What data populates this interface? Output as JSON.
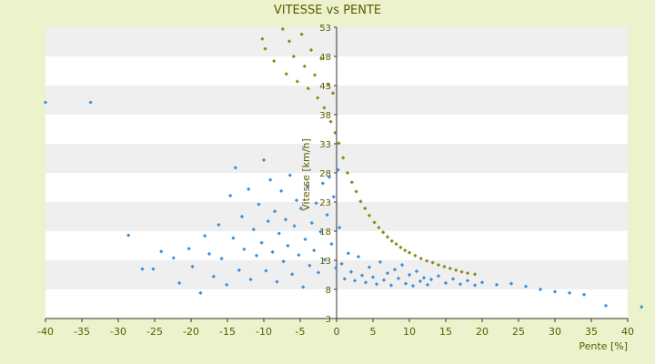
{
  "chart_data": {
    "type": "scatter",
    "title": "VITESSE vs PENTE",
    "xlabel": "Pente [%]",
    "ylabel": "Vitesse [km/h]",
    "xlim": [
      -40,
      40
    ],
    "ylim": [
      3,
      53
    ],
    "x_ticks": [
      -40,
      -35,
      -30,
      -25,
      -20,
      -15,
      -10,
      -5,
      0,
      5,
      10,
      15,
      20,
      25,
      30,
      35,
      40
    ],
    "y_ticks": [
      3,
      8,
      13,
      18,
      23,
      28,
      33,
      38,
      43,
      48,
      53
    ],
    "grid": "horizontal bands",
    "legend": "none",
    "colors": {
      "background": "#ecf2cc",
      "band_light": "#ffffff",
      "band_dark": "#efefef",
      "series_blue": "#3d8ed6",
      "series_olive": "#8a8a1a",
      "text": "#5a5a00",
      "axis": "#333333"
    },
    "series": [
      {
        "points": [
          [
            -40,
            40.1
          ],
          [
            -33.8,
            40.1
          ],
          [
            -28.6,
            17.3
          ],
          [
            -26.7,
            11.5
          ],
          [
            -25.2,
            11.5
          ],
          [
            -24.1,
            14.5
          ],
          [
            -22.4,
            13.4
          ],
          [
            -21.6,
            9.1
          ],
          [
            -20.3,
            15.0
          ],
          [
            -19.8,
            11.9
          ],
          [
            -18.7,
            7.4
          ],
          [
            -18.1,
            17.2
          ],
          [
            -17.5,
            14.1
          ],
          [
            -16.9,
            10.2
          ],
          [
            -16.2,
            19.1
          ],
          [
            -15.8,
            13.3
          ],
          [
            -15.1,
            8.8
          ],
          [
            -14.6,
            24.1
          ],
          [
            -14.2,
            16.8
          ],
          [
            -13.9,
            28.9
          ],
          [
            -13.4,
            11.3
          ],
          [
            -13.0,
            20.5
          ],
          [
            -12.7,
            14.9
          ],
          [
            -12.1,
            25.2
          ],
          [
            -11.8,
            9.7
          ],
          [
            -11.4,
            18.3
          ],
          [
            -11.0,
            13.8
          ],
          [
            -10.7,
            22.6
          ],
          [
            -10.3,
            16.0
          ],
          [
            -10.0,
            30.2
          ],
          [
            -9.7,
            11.2
          ],
          [
            -9.4,
            19.7
          ],
          [
            -9.1,
            26.8
          ],
          [
            -8.8,
            14.4
          ],
          [
            -8.5,
            21.4
          ],
          [
            -8.2,
            9.3
          ],
          [
            -7.9,
            17.6
          ],
          [
            -7.6,
            24.9
          ],
          [
            -7.3,
            12.8
          ],
          [
            -7.0,
            20.0
          ],
          [
            -6.7,
            15.5
          ],
          [
            -6.4,
            27.6
          ],
          [
            -6.1,
            10.6
          ],
          [
            -5.8,
            18.9
          ],
          [
            -5.5,
            23.3
          ],
          [
            -5.2,
            13.9
          ],
          [
            -4.9,
            21.9
          ],
          [
            -4.6,
            8.4
          ],
          [
            -4.3,
            16.6
          ],
          [
            -4.0,
            25.7
          ],
          [
            -3.7,
            12.1
          ],
          [
            -3.4,
            19.4
          ],
          [
            -3.1,
            14.7
          ],
          [
            -2.8,
            22.8
          ],
          [
            -2.5,
            10.9
          ],
          [
            -2.2,
            17.9
          ],
          [
            -1.9,
            26.2
          ],
          [
            -1.6,
            13.1
          ],
          [
            -1.3,
            20.8
          ],
          [
            -1.0,
            27.3
          ],
          [
            -0.7,
            15.8
          ],
          [
            -0.4,
            23.9
          ],
          [
            -0.1,
            11.7
          ],
          [
            0.2,
            28.5
          ],
          [
            0.4,
            18.6
          ],
          [
            0.7,
            12.4
          ],
          [
            1.1,
            9.8
          ],
          [
            1.6,
            14.2
          ],
          [
            2.0,
            11.0
          ],
          [
            2.5,
            9.5
          ],
          [
            3.0,
            13.6
          ],
          [
            3.5,
            10.4
          ],
          [
            4.0,
            9.2
          ],
          [
            4.5,
            11.8
          ],
          [
            5.0,
            10.1
          ],
          [
            5.5,
            8.9
          ],
          [
            6.0,
            12.7
          ],
          [
            6.5,
            9.6
          ],
          [
            7.0,
            10.8
          ],
          [
            7.5,
            8.7
          ],
          [
            8.0,
            11.4
          ],
          [
            8.5,
            9.9
          ],
          [
            9.0,
            12.2
          ],
          [
            9.5,
            9.0
          ],
          [
            10.0,
            10.5
          ],
          [
            10.5,
            8.6
          ],
          [
            11.0,
            11.1
          ],
          [
            11.5,
            9.4
          ],
          [
            12.0,
            10.0
          ],
          [
            12.5,
            8.8
          ],
          [
            13.0,
            9.7
          ],
          [
            14.0,
            10.3
          ],
          [
            15.0,
            9.1
          ],
          [
            16.0,
            9.8
          ],
          [
            17.0,
            8.9
          ],
          [
            18.0,
            9.5
          ],
          [
            19.0,
            8.7
          ],
          [
            20.0,
            9.2
          ],
          [
            22.0,
            8.8
          ],
          [
            24.0,
            9.0
          ],
          [
            26.0,
            8.5
          ],
          [
            28.0,
            8.0
          ],
          [
            30.0,
            7.6
          ],
          [
            32.0,
            7.4
          ],
          [
            34.0,
            7.1
          ],
          [
            37.0,
            5.2
          ],
          [
            41.9,
            5.0
          ]
        ]
      },
      {
        "points": [
          [
            -10.2,
            51.0
          ],
          [
            -9.8,
            49.3
          ],
          [
            -8.6,
            47.2
          ],
          [
            -7.4,
            52.7
          ],
          [
            -6.9,
            45.0
          ],
          [
            -6.5,
            50.6
          ],
          [
            -5.9,
            48.0
          ],
          [
            -5.4,
            43.7
          ],
          [
            -4.8,
            51.8
          ],
          [
            -4.4,
            46.3
          ],
          [
            -3.9,
            42.5
          ],
          [
            -3.5,
            49.1
          ],
          [
            -3.0,
            44.8
          ],
          [
            -2.6,
            40.9
          ],
          [
            -2.1,
            47.6
          ],
          [
            -1.7,
            39.2
          ],
          [
            -1.2,
            43.1
          ],
          [
            -0.8,
            36.8
          ],
          [
            -0.5,
            41.7
          ],
          [
            -0.2,
            34.9
          ],
          [
            0.3,
            33.1
          ],
          [
            0.9,
            30.6
          ],
          [
            1.5,
            28.0
          ],
          [
            2.1,
            26.4
          ],
          [
            2.7,
            24.8
          ],
          [
            3.3,
            23.1
          ],
          [
            3.9,
            21.9
          ],
          [
            4.5,
            20.7
          ],
          [
            5.2,
            19.5
          ],
          [
            5.8,
            18.6
          ],
          [
            6.4,
            17.8
          ],
          [
            7.0,
            17.0
          ],
          [
            7.6,
            16.3
          ],
          [
            8.2,
            15.8
          ],
          [
            8.8,
            15.2
          ],
          [
            9.4,
            14.7
          ],
          [
            10.0,
            14.3
          ],
          [
            10.8,
            13.8
          ],
          [
            11.6,
            13.3
          ],
          [
            12.4,
            12.9
          ],
          [
            13.2,
            12.6
          ],
          [
            14.0,
            12.2
          ],
          [
            14.8,
            11.9
          ],
          [
            15.6,
            11.6
          ],
          [
            16.4,
            11.3
          ],
          [
            17.2,
            11.0
          ],
          [
            18.0,
            10.8
          ],
          [
            19.0,
            10.6
          ]
        ]
      }
    ]
  }
}
